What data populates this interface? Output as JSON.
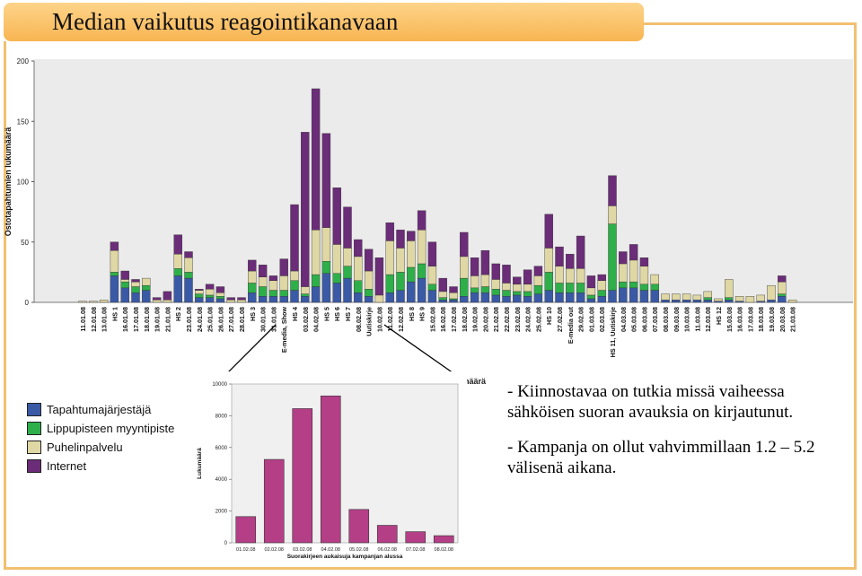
{
  "slide": {
    "title": "Median vaikutus reagointikanavaan",
    "notes": [
      "- Kiinnostavaa on tutkia missä vaiheessa sähköisen suoran avauksia on kirjautunut.",
      "- Kampanja on ollut vahvimmillaan 1.2 – 5.2 välisenä aikana."
    ],
    "cut_label": "imäärä"
  },
  "colors": {
    "Tapahtumajärjestäjä": "#3a5aa6",
    "Lippupisteen myyntipiste": "#2eaf49",
    "Puhelinpalvelu": "#dfd7a4",
    "Internet": "#6b2c78",
    "inset_bar": "#b43f87",
    "plot_bg": "#ebebeb",
    "frame": "#f2c070"
  },
  "legend": [
    {
      "label": "Tapahtumajärjestäjä",
      "color": "#3a5aa6"
    },
    {
      "label": "Lippupisteen myyntipiste",
      "color": "#2eaf49"
    },
    {
      "label": "Puhelinpalvelu",
      "color": "#dfd7a4"
    },
    {
      "label": "Internet",
      "color": "#6b2c78"
    }
  ],
  "chart_data": [
    {
      "type": "bar",
      "stacked": true,
      "ylabel": "Ostotapahtumien lukumäärä",
      "ylim": [
        0,
        200
      ],
      "yticks": [
        0,
        50,
        100,
        150,
        200
      ],
      "categories": [
        "11.01.08",
        "12.01.08",
        "13.01.08",
        "HS 1",
        "16.01.08",
        "17.01.08",
        "18.01.08",
        "19.01.08",
        "21.01.08",
        "HS 2",
        "23.01.08",
        "24.01.08",
        "25.01.08",
        "26.01.08",
        "27.01.08",
        "28.01.08",
        "HS 3",
        "30.01.08",
        "31.01.08",
        "E-media, Show",
        "HS 4",
        "03.02.08",
        "04.02.08",
        "HS 5",
        "HS 6",
        "HS 7",
        "08.02.08",
        "Uutiskirje",
        "10.02.08",
        "11.02.08",
        "12.02.08",
        "HS 8",
        "HS 9",
        "15.02.08",
        "16.02.08",
        "17.02.08",
        "18.02.08",
        "19.02.08",
        "20.02.08",
        "21.02.08",
        "22.02.08",
        "23.02.08",
        "24.02.08",
        "25.02.08",
        "HS 10",
        "27.02.08",
        "E-media out",
        "29.02.08",
        "01.03.08",
        "02.03.08",
        "HS 11, Uutiskirje",
        "04.03.08",
        "05.03.08",
        "06.03.08",
        "07.03.08",
        "08.03.08",
        "09.03.08",
        "10.03.08",
        "11.03.08",
        "12.03.08",
        "HS 12",
        "15.03.08",
        "16.03.08",
        "17.03.08",
        "18.03.08",
        "19.03.08",
        "20.03.08",
        "21.03.08"
      ],
      "series": [
        {
          "name": "Tapahtumajärjestäjä",
          "values": [
            0,
            0,
            0,
            22,
            12,
            8,
            10,
            0,
            0,
            22,
            20,
            4,
            4,
            3,
            0,
            0,
            8,
            5,
            5,
            5,
            10,
            5,
            13,
            24,
            16,
            20,
            8,
            5,
            0,
            8,
            10,
            17,
            20,
            10,
            2,
            2,
            5,
            8,
            8,
            6,
            5,
            6,
            5,
            7,
            10,
            8,
            8,
            8,
            3,
            5,
            10,
            12,
            12,
            10,
            10,
            2,
            2,
            2,
            2,
            2,
            1,
            2,
            1,
            0,
            1,
            2,
            5,
            0
          ]
        },
        {
          "name": "Lippupisteen myyntipiste",
          "values": [
            0,
            0,
            0,
            3,
            5,
            5,
            4,
            0,
            0,
            6,
            5,
            3,
            2,
            2,
            0,
            0,
            8,
            8,
            5,
            5,
            8,
            2,
            10,
            10,
            8,
            10,
            10,
            6,
            0,
            15,
            15,
            12,
            12,
            5,
            2,
            1,
            15,
            4,
            5,
            5,
            5,
            3,
            4,
            7,
            15,
            8,
            8,
            8,
            3,
            5,
            55,
            5,
            5,
            5,
            5,
            0,
            0,
            0,
            0,
            2,
            0,
            2,
            0,
            0,
            0,
            0,
            2,
            0
          ]
        },
        {
          "name": "Puhelinpalvelu",
          "values": [
            1,
            1,
            2,
            18,
            2,
            4,
            6,
            2,
            2,
            12,
            12,
            3,
            5,
            3,
            2,
            2,
            10,
            8,
            8,
            12,
            8,
            6,
            37,
            28,
            24,
            15,
            20,
            15,
            6,
            28,
            20,
            22,
            28,
            15,
            5,
            5,
            18,
            10,
            10,
            8,
            6,
            6,
            6,
            8,
            20,
            14,
            12,
            12,
            6,
            8,
            15,
            15,
            18,
            15,
            8,
            5,
            5,
            5,
            4,
            5,
            2,
            15,
            4,
            5,
            5,
            12,
            10,
            2
          ]
        },
        {
          "name": "Internet",
          "values": [
            0,
            0,
            0,
            7,
            7,
            2,
            0,
            2,
            7,
            16,
            5,
            1,
            4,
            5,
            2,
            2,
            9,
            10,
            4,
            14,
            55,
            128,
            117,
            78,
            47,
            34,
            14,
            18,
            31,
            15,
            15,
            8,
            16,
            20,
            11,
            5,
            20,
            15,
            20,
            13,
            15,
            6,
            12,
            8,
            28,
            16,
            12,
            27,
            10,
            5,
            25,
            10,
            13,
            7,
            0,
            0,
            0,
            0,
            0,
            0,
            0,
            0,
            0,
            0,
            0,
            0,
            5,
            0
          ]
        }
      ]
    },
    {
      "type": "bar",
      "ylabel": "Lukumäärä",
      "xlabel": "Suorakirjeen aukaisuja kampanjan alussa",
      "ylim": [
        0,
        10000
      ],
      "yticks": [
        0,
        2000,
        4000,
        6000,
        8000,
        10000
      ],
      "categories": [
        "01.02.08",
        "02.02.08",
        "03.02.08",
        "04.02.08",
        "05.02.08",
        "06.02.08",
        "07.02.08",
        "08.02.08"
      ],
      "values": [
        1650,
        5250,
        8450,
        9250,
        2100,
        1100,
        700,
        450
      ]
    }
  ]
}
